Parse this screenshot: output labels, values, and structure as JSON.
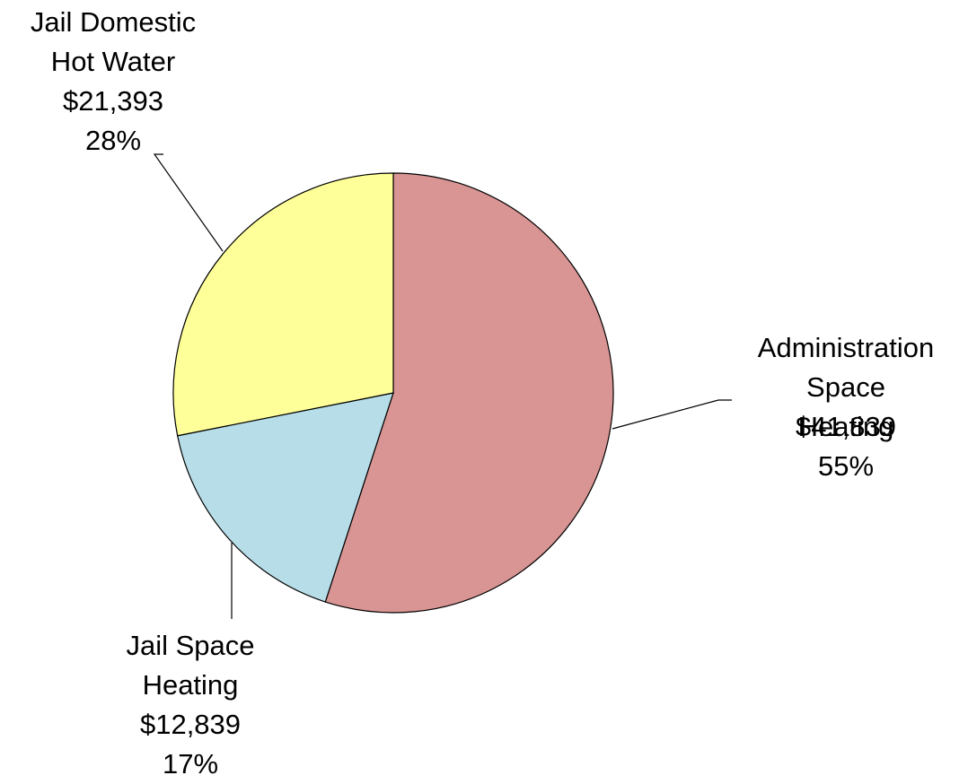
{
  "chart_data": {
    "type": "pie",
    "categories": [
      "Administration\nSpace Heating",
      "Jail Space\nHeating",
      "Jail Domestic\nHot Water"
    ],
    "values": [
      41839,
      12839,
      21393
    ],
    "value_labels": [
      "$41,839",
      "$12,839",
      "$21,393"
    ],
    "percents": [
      55,
      17,
      28
    ],
    "percent_labels": [
      "55%",
      "17%",
      "28%"
    ],
    "colors": [
      "#d99594",
      "#b7dde8",
      "#ffff99"
    ]
  }
}
